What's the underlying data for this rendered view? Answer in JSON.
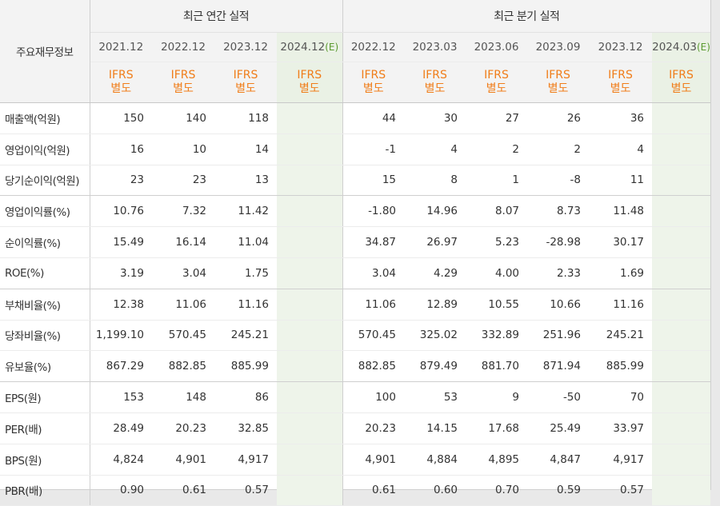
{
  "header": {
    "label_col": "주요재무정보",
    "annual_title": "최근 연간 실적",
    "quarter_title": "최근 분기 실적",
    "ifrs_line1": "IFRS",
    "ifrs_line2": "별도",
    "annual_periods": [
      "2021.12",
      "2022.12",
      "2023.12",
      "2024.12"
    ],
    "annual_estimate_mark": "(E)",
    "quarter_periods": [
      "2022.12",
      "2023.03",
      "2023.06",
      "2023.09",
      "2023.12",
      "2024.03"
    ],
    "quarter_estimate_mark": "(E)"
  },
  "rows": [
    {
      "label": "매출액(억원)",
      "annual": [
        "150",
        "140",
        "118",
        ""
      ],
      "quarter": [
        "44",
        "30",
        "27",
        "26",
        "36",
        ""
      ]
    },
    {
      "label": "영업이익(억원)",
      "annual": [
        "16",
        "10",
        "14",
        ""
      ],
      "quarter": [
        "-1",
        "4",
        "2",
        "2",
        "4",
        ""
      ]
    },
    {
      "label": "당기순이익(억원)",
      "annual": [
        "23",
        "23",
        "13",
        ""
      ],
      "quarter": [
        "15",
        "8",
        "1",
        "-8",
        "11",
        ""
      ]
    },
    {
      "label": "영업이익률(%)",
      "annual": [
        "10.76",
        "7.32",
        "11.42",
        ""
      ],
      "quarter": [
        "-1.80",
        "14.96",
        "8.07",
        "8.73",
        "11.48",
        ""
      ]
    },
    {
      "label": "순이익률(%)",
      "annual": [
        "15.49",
        "16.14",
        "11.04",
        ""
      ],
      "quarter": [
        "34.87",
        "26.97",
        "5.23",
        "-28.98",
        "30.17",
        ""
      ]
    },
    {
      "label": "ROE(%)",
      "annual": [
        "3.19",
        "3.04",
        "1.75",
        ""
      ],
      "quarter": [
        "3.04",
        "4.29",
        "4.00",
        "2.33",
        "1.69",
        ""
      ]
    },
    {
      "label": "부채비율(%)",
      "annual": [
        "12.38",
        "11.06",
        "11.16",
        ""
      ],
      "quarter": [
        "11.06",
        "12.89",
        "10.55",
        "10.66",
        "11.16",
        ""
      ]
    },
    {
      "label": "당좌비율(%)",
      "annual": [
        "1,199.10",
        "570.45",
        "245.21",
        ""
      ],
      "quarter": [
        "570.45",
        "325.02",
        "332.89",
        "251.96",
        "245.21",
        ""
      ]
    },
    {
      "label": "유보율(%)",
      "annual": [
        "867.29",
        "882.85",
        "885.99",
        ""
      ],
      "quarter": [
        "882.85",
        "879.49",
        "881.70",
        "871.94",
        "885.99",
        ""
      ]
    },
    {
      "label": "EPS(원)",
      "annual": [
        "153",
        "148",
        "86",
        ""
      ],
      "quarter": [
        "100",
        "53",
        "9",
        "-50",
        "70",
        ""
      ]
    },
    {
      "label": "PER(배)",
      "annual": [
        "28.49",
        "20.23",
        "32.85",
        ""
      ],
      "quarter": [
        "20.23",
        "14.15",
        "17.68",
        "25.49",
        "33.97",
        ""
      ]
    },
    {
      "label": "BPS(원)",
      "annual": [
        "4,824",
        "4,901",
        "4,917",
        ""
      ],
      "quarter": [
        "4,901",
        "4,884",
        "4,895",
        "4,847",
        "4,917",
        ""
      ]
    },
    {
      "label": "PBR(배)",
      "annual": [
        "0.90",
        "0.61",
        "0.57",
        ""
      ],
      "quarter": [
        "0.61",
        "0.60",
        "0.70",
        "0.59",
        "0.57",
        ""
      ]
    }
  ],
  "colors": {
    "ifrs": "#f07d19",
    "negative": "#d0021b",
    "estimate_bg": "#eef4ea",
    "header_bg": "#f3f3f3"
  }
}
